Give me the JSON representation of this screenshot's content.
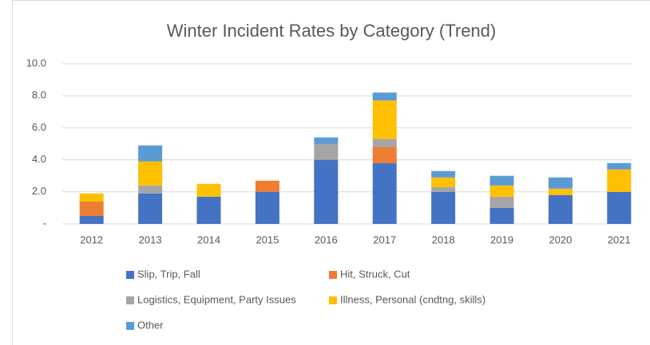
{
  "chart_data": {
    "type": "stacked_bar",
    "title": "Winter Incident Rates by Category (Trend)",
    "categories": [
      "2012",
      "2013",
      "2014",
      "2015",
      "2016",
      "2017",
      "2018",
      "2019",
      "2020",
      "2021"
    ],
    "series": [
      {
        "name": "Slip, Trip, Fall",
        "color": "#4472c4",
        "values": [
          0.5,
          1.9,
          1.7,
          2.0,
          4.0,
          3.8,
          2.0,
          1.0,
          1.8,
          2.0
        ]
      },
      {
        "name": "Hit, Struck, Cut",
        "color": "#ed7d31",
        "values": [
          0.9,
          0,
          0,
          0.7,
          0,
          1.0,
          0,
          0,
          0,
          0
        ]
      },
      {
        "name": "Logistics, Equipment, Party Issues",
        "color": "#a5a5a5",
        "values": [
          0,
          0.5,
          0,
          0,
          1.0,
          0.5,
          0.3,
          0.7,
          0,
          0
        ]
      },
      {
        "name": "Illness, Personal (cndtng, skills)",
        "color": "#ffc000",
        "values": [
          0.5,
          1.5,
          0.8,
          0,
          0,
          2.4,
          0.6,
          0.7,
          0.4,
          1.4
        ]
      },
      {
        "name": "Other",
        "color": "#5b9bd5",
        "values": [
          0,
          1.0,
          0,
          0,
          0.4,
          0.5,
          0.4,
          0.6,
          0.7,
          0.4
        ]
      }
    ],
    "ylim": [
      0,
      10
    ],
    "yticks": [
      {
        "value": 0,
        "label": "-"
      },
      {
        "value": 2,
        "label": "2.0"
      },
      {
        "value": 4,
        "label": "4.0"
      },
      {
        "value": 6,
        "label": "6.0"
      },
      {
        "value": 8,
        "label": "8.0"
      },
      {
        "value": 10,
        "label": "10.0"
      }
    ],
    "grid": true,
    "legend": "bottom"
  }
}
